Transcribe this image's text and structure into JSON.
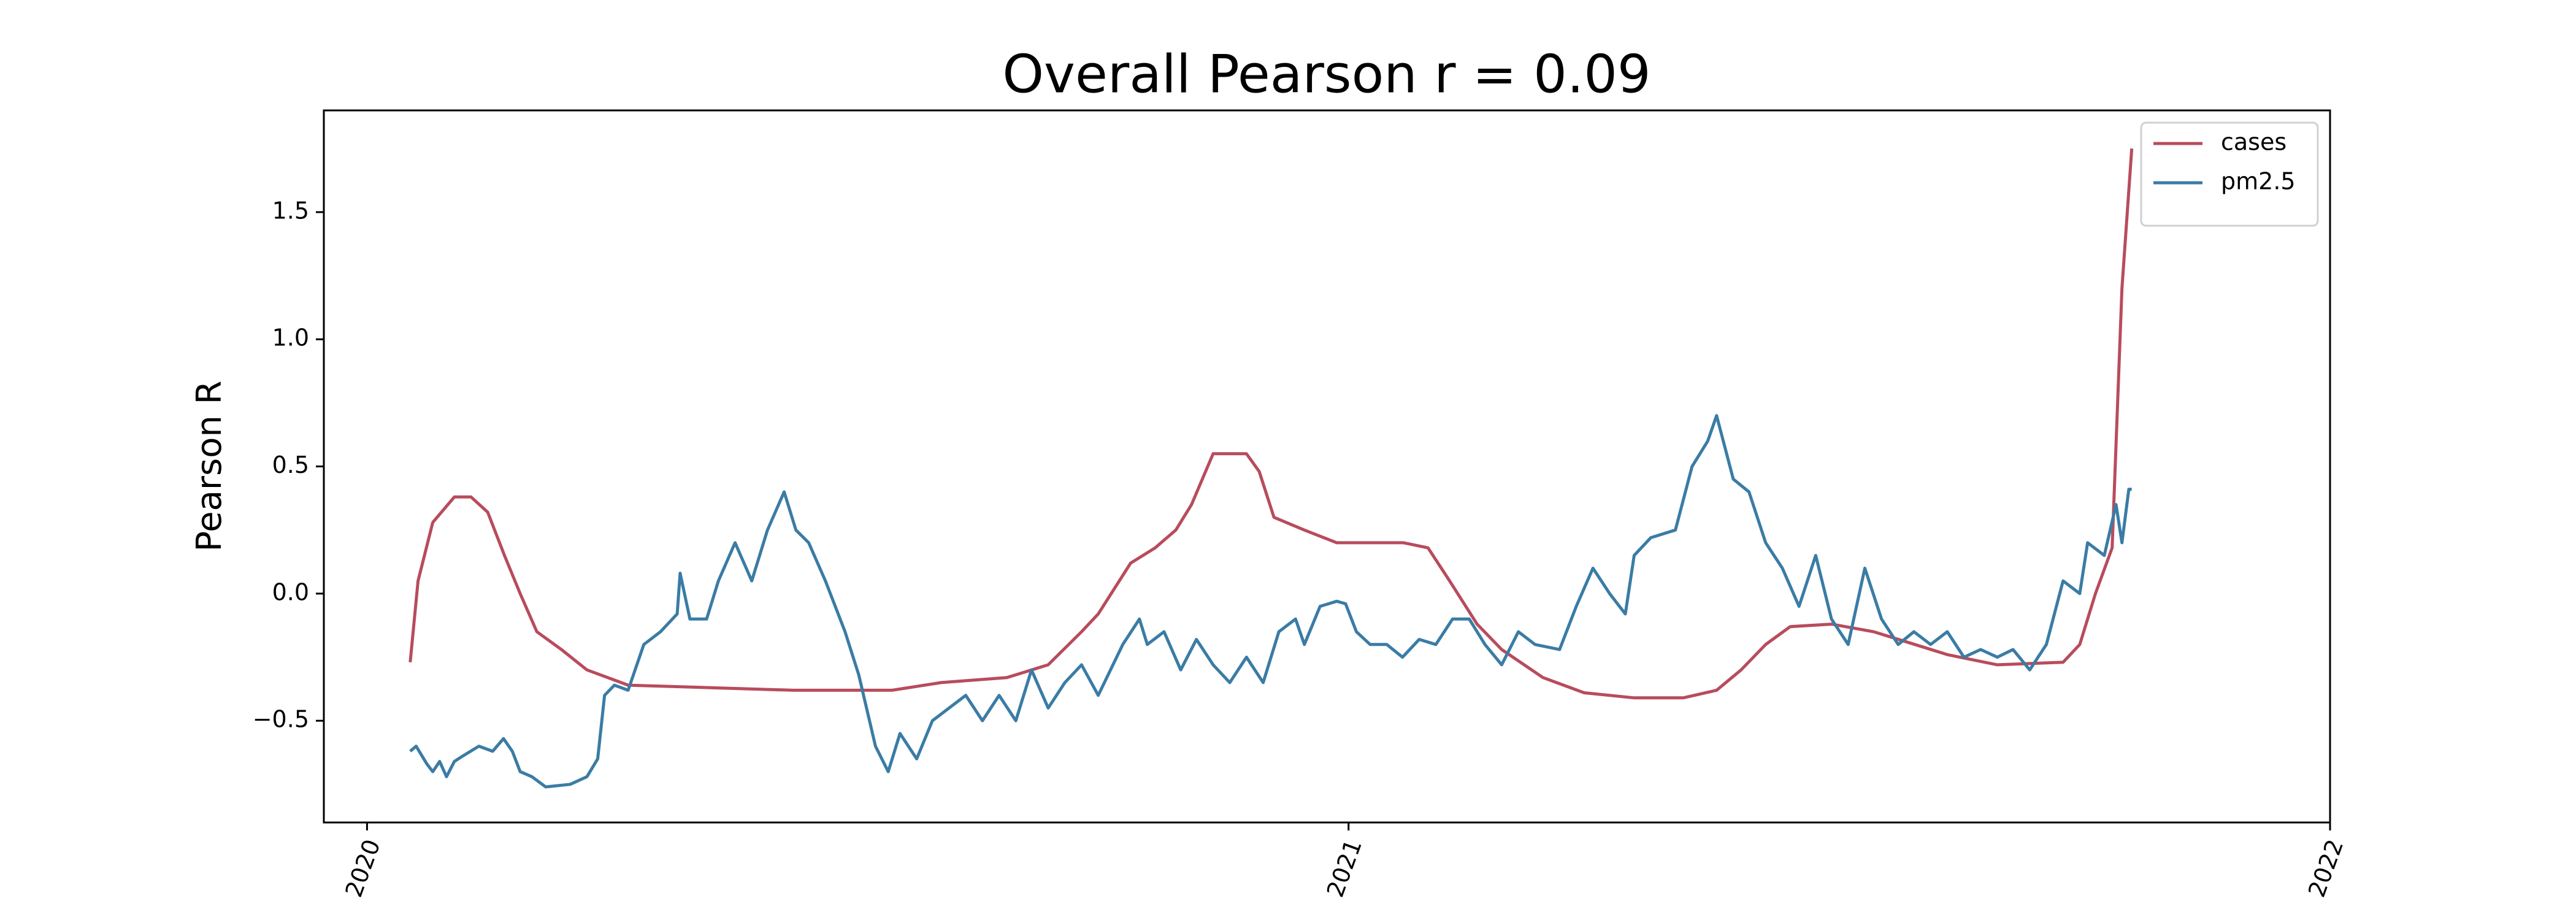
{
  "chart_data": {
    "type": "line",
    "title": "Overall Pearson r = 0.09",
    "ylabel": "Pearson R",
    "xlim": [
      2019.956,
      2022
    ],
    "xticks": [
      2020,
      2021,
      2022
    ],
    "ylim": [
      -0.9,
      1.9
    ],
    "yticks": [
      {
        "value": -0.5,
        "label": "−0.5"
      },
      {
        "value": 0,
        "label": "0.0"
      },
      {
        "value": 0.5,
        "label": "0.5"
      },
      {
        "value": 1,
        "label": "1.0"
      },
      {
        "value": 1.5,
        "label": "1.5"
      }
    ],
    "legend": "upper right",
    "grid": false,
    "series": [
      {
        "name": "cases",
        "color": "#b84c5c",
        "x": [
          2020.044,
          2020.052,
          2020.067,
          2020.089,
          2020.106,
          2020.123,
          2020.14,
          2020.156,
          2020.173,
          2020.198,
          2020.224,
          2020.266,
          2020.35,
          2020.434,
          2020.535,
          2020.585,
          2020.652,
          2020.694,
          2020.728,
          2020.745,
          2020.778,
          2020.803,
          2020.824,
          2020.84,
          2020.862,
          2020.896,
          2020.909,
          2020.924,
          2020.955,
          2020.988,
          2021.056,
          2021.081,
          2021.103,
          2021.131,
          2021.156,
          2021.198,
          2021.24,
          2021.291,
          2021.341,
          2021.375,
          2021.4,
          2021.425,
          2021.45,
          2021.492,
          2021.535,
          2021.577,
          2021.61,
          2021.661,
          2021.728,
          2021.745,
          2021.761,
          2021.778,
          2021.788,
          2021.798
        ],
        "values": [
          -0.27,
          0.05,
          0.28,
          0.38,
          0.38,
          0.32,
          0.15,
          0.0,
          -0.15,
          -0.22,
          -0.3,
          -0.36,
          -0.37,
          -0.38,
          -0.38,
          -0.35,
          -0.33,
          -0.28,
          -0.15,
          -0.08,
          0.12,
          0.18,
          0.25,
          0.35,
          0.55,
          0.55,
          0.48,
          0.3,
          0.25,
          0.2,
          0.2,
          0.18,
          0.05,
          -0.12,
          -0.22,
          -0.33,
          -0.39,
          -0.41,
          -0.41,
          -0.38,
          -0.3,
          -0.2,
          -0.13,
          -0.12,
          -0.15,
          -0.2,
          -0.24,
          -0.28,
          -0.27,
          -0.2,
          0.0,
          0.18,
          1.2,
          1.75
        ]
      },
      {
        "name": "pm2.5",
        "color": "#3a7ca5",
        "x": [
          2020.044,
          2020.05,
          2020.061,
          2020.067,
          2020.074,
          2020.081,
          2020.089,
          2020.097,
          2020.114,
          2020.128,
          2020.139,
          2020.148,
          2020.156,
          2020.168,
          2020.182,
          2020.207,
          2020.224,
          2020.235,
          2020.242,
          2020.252,
          2020.266,
          2020.282,
          2020.299,
          2020.316,
          2020.319,
          2020.329,
          2020.346,
          2020.358,
          2020.375,
          2020.392,
          2020.408,
          2020.425,
          2020.437,
          2020.45,
          2020.467,
          2020.487,
          2020.501,
          2020.518,
          2020.531,
          2020.543,
          2020.56,
          2020.576,
          2020.593,
          2020.61,
          2020.627,
          2020.644,
          2020.661,
          2020.677,
          2020.694,
          2020.711,
          2020.728,
          2020.745,
          2020.77,
          2020.787,
          2020.795,
          2020.812,
          2020.829,
          2020.845,
          2020.862,
          2020.879,
          2020.896,
          2020.913,
          2020.929,
          2020.946,
          2020.955,
          2020.971,
          2020.988,
          2020.997,
          2021.008,
          2021.022,
          2021.039,
          2021.055,
          2021.072,
          2021.089,
          2021.106,
          2021.123,
          2021.139,
          2021.156,
          2021.173,
          2021.19,
          2021.215,
          2021.232,
          2021.249,
          2021.266,
          2021.282,
          2021.291,
          2021.308,
          2021.333,
          2021.35,
          2021.366,
          2021.375,
          2021.392,
          2021.408,
          2021.425,
          2021.442,
          2021.459,
          2021.476,
          2021.492,
          2021.509,
          2021.526,
          2021.543,
          2021.56,
          2021.576,
          2021.593,
          2021.61,
          2021.627,
          2021.644,
          2021.661,
          2021.677,
          2021.694,
          2021.711,
          2021.728,
          2021.745,
          2021.753,
          2021.77,
          2021.782,
          2021.788,
          2021.795,
          2021.798
        ],
        "values": [
          -0.62,
          -0.6,
          -0.67,
          -0.7,
          -0.66,
          -0.72,
          -0.66,
          -0.64,
          -0.6,
          -0.62,
          -0.57,
          -0.62,
          -0.7,
          -0.72,
          -0.76,
          -0.75,
          -0.72,
          -0.65,
          -0.4,
          -0.36,
          -0.38,
          -0.2,
          -0.15,
          -0.08,
          0.08,
          -0.1,
          -0.1,
          0.05,
          0.2,
          0.05,
          0.25,
          0.4,
          0.25,
          0.2,
          0.05,
          -0.15,
          -0.32,
          -0.6,
          -0.7,
          -0.55,
          -0.65,
          -0.5,
          -0.45,
          -0.4,
          -0.5,
          -0.4,
          -0.5,
          -0.3,
          -0.45,
          -0.35,
          -0.28,
          -0.4,
          -0.2,
          -0.1,
          -0.2,
          -0.15,
          -0.3,
          -0.18,
          -0.28,
          -0.35,
          -0.25,
          -0.35,
          -0.15,
          -0.1,
          -0.2,
          -0.05,
          -0.03,
          -0.04,
          -0.15,
          -0.2,
          -0.2,
          -0.25,
          -0.18,
          -0.2,
          -0.1,
          -0.1,
          -0.2,
          -0.28,
          -0.15,
          -0.2,
          -0.22,
          -0.05,
          0.1,
          0.0,
          -0.08,
          0.15,
          0.22,
          0.25,
          0.5,
          0.6,
          0.7,
          0.45,
          0.4,
          0.2,
          0.1,
          -0.05,
          0.15,
          -0.1,
          -0.2,
          0.1,
          -0.1,
          -0.2,
          -0.15,
          -0.2,
          -0.15,
          -0.25,
          -0.22,
          -0.25,
          -0.22,
          -0.3,
          -0.2,
          0.05,
          0.0,
          0.2,
          0.15,
          0.35,
          0.2,
          0.41,
          0.41
        ]
      }
    ]
  }
}
